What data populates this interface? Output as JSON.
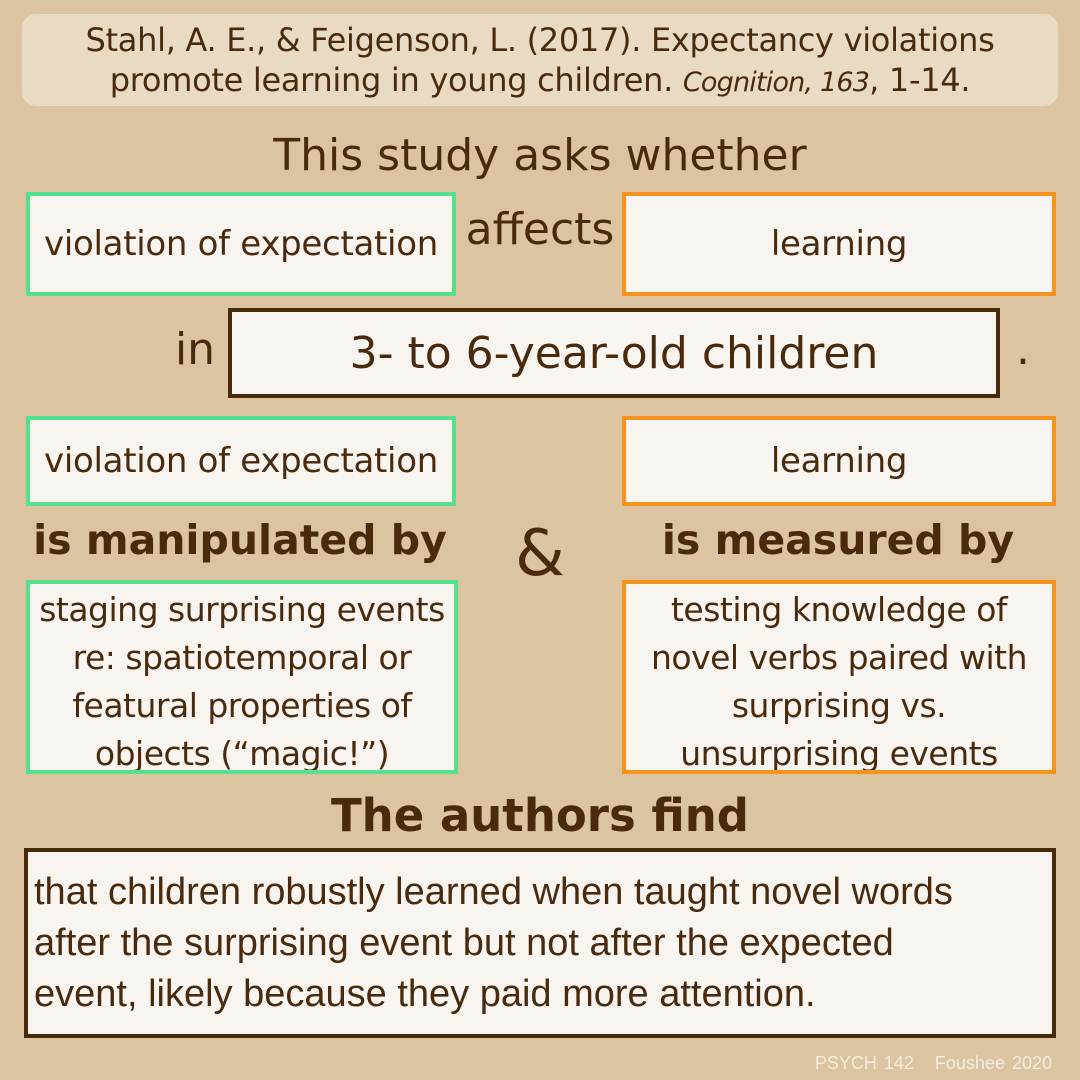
{
  "citation": {
    "line1": "Stahl, A. E., & Feigenson, L. (2017). Expectancy violations",
    "line2_prefix": "promote learning in young children. ",
    "journal": "Cognition, 163",
    "line2_suffix": ", 1-14."
  },
  "question": {
    "lead": "This study asks whether",
    "iv": "violation of expectation",
    "connector": "affects",
    "dv": "learning",
    "in_word": "in",
    "population": "3- to 6-year-old children",
    "period": "."
  },
  "methods": {
    "iv": "violation of expectation",
    "dv": "learning",
    "manipulated_label": "is manipulated by",
    "ampersand": "&",
    "measured_label": "is measured by",
    "manipulation": [
      "staging surprising events",
      "re: spatiotemporal or",
      "featural properties of",
      "objects (“magic!”)"
    ],
    "measure": [
      "testing knowledge of",
      "novel verbs paired with",
      "surprising vs.",
      "unsurprising events"
    ]
  },
  "findings": {
    "heading": "The authors find",
    "lines": [
      "that children robustly learned when taught novel words",
      "after the surprising event but not after the expected",
      "event, likely because they paid more attention."
    ]
  },
  "footer": {
    "course": "PSYCH 142",
    "author": "Foushee 2020"
  },
  "colors": {
    "background": "#dcc4a0",
    "text": "#4a2a0c",
    "independent_variable": "#56e08e",
    "dependent_variable": "#f6921e"
  }
}
